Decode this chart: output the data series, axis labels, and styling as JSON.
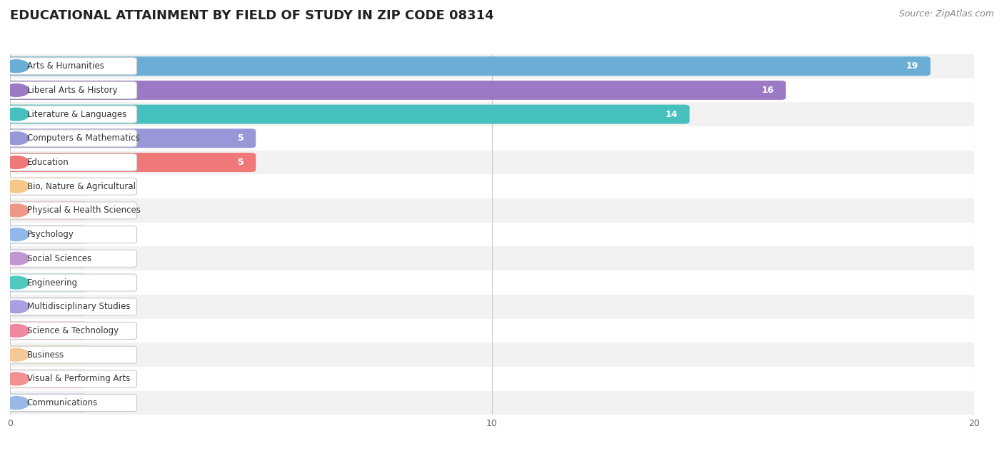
{
  "title": "EDUCATIONAL ATTAINMENT BY FIELD OF STUDY IN ZIP CODE 08314",
  "source": "Source: ZipAtlas.com",
  "categories": [
    "Arts & Humanities",
    "Liberal Arts & History",
    "Literature & Languages",
    "Computers & Mathematics",
    "Education",
    "Bio, Nature & Agricultural",
    "Physical & Health Sciences",
    "Psychology",
    "Social Sciences",
    "Engineering",
    "Multidisciplinary Studies",
    "Science & Technology",
    "Business",
    "Visual & Performing Arts",
    "Communications"
  ],
  "values": [
    19,
    16,
    14,
    5,
    5,
    0,
    0,
    0,
    0,
    0,
    0,
    0,
    0,
    0,
    0
  ],
  "bar_colors": [
    "#6aaed6",
    "#9b79c4",
    "#46bfbf",
    "#9898d8",
    "#f07878",
    "#f5c88a",
    "#f09888",
    "#90b8e8",
    "#c098d0",
    "#50c8be",
    "#a8a0e0",
    "#f088a0",
    "#f5c89a",
    "#f09090",
    "#98b8e8"
  ],
  "background_color_row_odd": "#f2f2f2",
  "background_color_row_even": "#ffffff",
  "xlim": [
    0,
    20
  ],
  "xticks": [
    0,
    10,
    20
  ],
  "title_fontsize": 13,
  "source_fontsize": 9,
  "bar_label_fontsize": 9,
  "category_fontsize": 8.5
}
